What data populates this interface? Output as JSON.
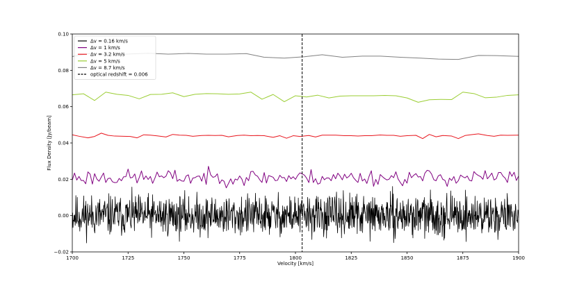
{
  "chart_data": {
    "type": "line",
    "xlabel": "Velocity [km/s]",
    "ylabel": "Flux Density [Jy/beam]",
    "xlim": [
      1700,
      1900
    ],
    "ylim": [
      -0.02,
      0.1
    ],
    "xticks": [
      "1700",
      "1725",
      "1750",
      "1775",
      "1800",
      "1825",
      "1850",
      "1875",
      "1900"
    ],
    "yticks": [
      "−0.02",
      "0.00",
      "0.02",
      "0.04",
      "0.06",
      "0.08",
      "0.10"
    ],
    "legend_position": "top-left",
    "grid": false,
    "series": [
      {
        "name": "Δv = 0.16 km/s",
        "color": "#000000",
        "step": 0.16,
        "base": 0.0,
        "amp": 0.0055,
        "seed": 11
      },
      {
        "name": "Δv = 1 km/s",
        "color": "#800080",
        "step": 1,
        "base": 0.021,
        "amp": 0.0022,
        "seed": 23
      },
      {
        "name": "Δv = 3.2 km/s",
        "color": "#e8141c",
        "points": [
          [
            1700,
            0.0445
          ],
          [
            1703,
            0.0437
          ],
          [
            1707,
            0.0428
          ],
          [
            1710,
            0.0436
          ],
          [
            1713,
            0.0454
          ],
          [
            1716,
            0.0442
          ],
          [
            1719,
            0.0438
          ],
          [
            1723,
            0.0437
          ],
          [
            1726,
            0.0436
          ],
          [
            1729,
            0.0428
          ],
          [
            1732,
            0.0445
          ],
          [
            1735,
            0.0443
          ],
          [
            1738,
            0.0439
          ],
          [
            1742,
            0.0433
          ],
          [
            1745,
            0.0447
          ],
          [
            1748,
            0.0443
          ],
          [
            1751,
            0.0442
          ],
          [
            1754,
            0.0437
          ],
          [
            1758,
            0.0441
          ],
          [
            1761,
            0.0442
          ],
          [
            1764,
            0.0441
          ],
          [
            1767,
            0.0442
          ],
          [
            1770,
            0.0434
          ],
          [
            1774,
            0.0441
          ],
          [
            1777,
            0.0443
          ],
          [
            1780,
            0.044
          ],
          [
            1783,
            0.0441
          ],
          [
            1786,
            0.044
          ],
          [
            1790,
            0.0431
          ],
          [
            1793,
            0.044
          ],
          [
            1796,
            0.0426
          ],
          [
            1799,
            0.044
          ],
          [
            1802,
            0.0436
          ],
          [
            1806,
            0.0441
          ],
          [
            1809,
            0.0433
          ],
          [
            1812,
            0.0443
          ],
          [
            1815,
            0.0443
          ],
          [
            1818,
            0.0443
          ],
          [
            1822,
            0.044
          ],
          [
            1825,
            0.044
          ],
          [
            1828,
            0.0438
          ],
          [
            1831,
            0.044
          ],
          [
            1834,
            0.044
          ],
          [
            1838,
            0.0444
          ],
          [
            1841,
            0.0442
          ],
          [
            1844,
            0.0442
          ],
          [
            1847,
            0.0437
          ],
          [
            1850,
            0.044
          ],
          [
            1854,
            0.0442
          ],
          [
            1857,
            0.0424
          ],
          [
            1860,
            0.0447
          ],
          [
            1863,
            0.0434
          ],
          [
            1866,
            0.0441
          ],
          [
            1870,
            0.0438
          ],
          [
            1873,
            0.0424
          ],
          [
            1876,
            0.0441
          ],
          [
            1879,
            0.0446
          ],
          [
            1882,
            0.045
          ],
          [
            1886,
            0.0441
          ],
          [
            1889,
            0.0437
          ],
          [
            1892,
            0.0443
          ],
          [
            1895,
            0.0442
          ],
          [
            1900,
            0.0443
          ]
        ]
      },
      {
        "name": "Δv = 5 km/s",
        "color": "#9acd32",
        "points": [
          [
            1700,
            0.0665
          ],
          [
            1705,
            0.0671
          ],
          [
            1710,
            0.0634
          ],
          [
            1715,
            0.068
          ],
          [
            1720,
            0.0668
          ],
          [
            1725,
            0.0662
          ],
          [
            1730,
            0.0643
          ],
          [
            1735,
            0.0667
          ],
          [
            1740,
            0.0668
          ],
          [
            1745,
            0.0676
          ],
          [
            1750,
            0.0655
          ],
          [
            1755,
            0.0668
          ],
          [
            1760,
            0.0672
          ],
          [
            1765,
            0.0671
          ],
          [
            1770,
            0.0668
          ],
          [
            1775,
            0.067
          ],
          [
            1780,
            0.068
          ],
          [
            1785,
            0.0641
          ],
          [
            1790,
            0.0667
          ],
          [
            1795,
            0.0627
          ],
          [
            1800,
            0.066
          ],
          [
            1805,
            0.0653
          ],
          [
            1810,
            0.0663
          ],
          [
            1815,
            0.0648
          ],
          [
            1820,
            0.0658
          ],
          [
            1825,
            0.066
          ],
          [
            1830,
            0.066
          ],
          [
            1835,
            0.066
          ],
          [
            1840,
            0.0662
          ],
          [
            1845,
            0.066
          ],
          [
            1850,
            0.0648
          ],
          [
            1855,
            0.0624
          ],
          [
            1860,
            0.0638
          ],
          [
            1865,
            0.064
          ],
          [
            1870,
            0.0639
          ],
          [
            1875,
            0.068
          ],
          [
            1880,
            0.0672
          ],
          [
            1885,
            0.0649
          ],
          [
            1890,
            0.0652
          ],
          [
            1895,
            0.0662
          ],
          [
            1900,
            0.0665
          ]
        ]
      },
      {
        "name": "Δv = 8.7 km/s",
        "color": "#808080",
        "points": [
          [
            1700,
            0.0876
          ],
          [
            1708,
            0.0893
          ],
          [
            1717,
            0.0885
          ],
          [
            1726,
            0.089
          ],
          [
            1734,
            0.0894
          ],
          [
            1743,
            0.0889
          ],
          [
            1752,
            0.0893
          ],
          [
            1760,
            0.0889
          ],
          [
            1769,
            0.0889
          ],
          [
            1778,
            0.0892
          ],
          [
            1786,
            0.0872
          ],
          [
            1795,
            0.0867
          ],
          [
            1804,
            0.0875
          ],
          [
            1812,
            0.0886
          ],
          [
            1821,
            0.0872
          ],
          [
            1830,
            0.0878
          ],
          [
            1838,
            0.0878
          ],
          [
            1847,
            0.0872
          ],
          [
            1856,
            0.0867
          ],
          [
            1864,
            0.0862
          ],
          [
            1873,
            0.086
          ],
          [
            1882,
            0.0882
          ],
          [
            1890,
            0.0881
          ],
          [
            1900,
            0.0877
          ]
        ]
      }
    ],
    "vline": {
      "name": "optical redshift = 0.006",
      "x": 1803,
      "color": "#000000"
    }
  }
}
